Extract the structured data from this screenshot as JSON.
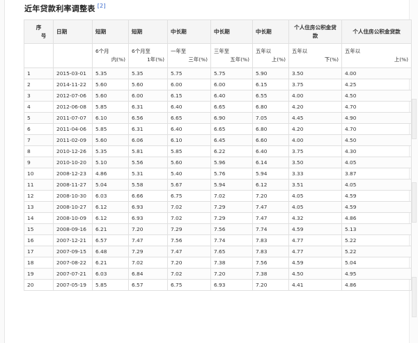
{
  "caption": {
    "title": "近年贷款利率调整表",
    "ref": "[2]"
  },
  "header": {
    "seq_line1": "序",
    "seq_line2": "号",
    "date": "日期",
    "short1": "短期",
    "short2": "短期",
    "mid1": "中长期",
    "mid2": "中长期",
    "mid3": "中长期",
    "fund1": "个人住房公积金贷款",
    "fund2": "个人住房公积金贷款"
  },
  "subheader": [
    {
      "l1": "",
      "l2": ""
    },
    {
      "l1": "",
      "l2": ""
    },
    {
      "l1": "6个月",
      "l2": "内(%)"
    },
    {
      "l1": "6个月至",
      "l2": "1年(%)"
    },
    {
      "l1": "一年至",
      "l2": "三年(%)"
    },
    {
      "l1": "三年至",
      "l2": "五年(%)"
    },
    {
      "l1": "五年以",
      "l2": "上(%)"
    },
    {
      "l1": "五年以",
      "l2": "下(%)"
    },
    {
      "l1": "五年以",
      "l2": "上(%)"
    }
  ],
  "rows": [
    [
      "1",
      "2015-03-01",
      "5.35",
      "5.35",
      "5.75",
      "5.75",
      "5.90",
      "3.50",
      "4.00"
    ],
    [
      "2",
      "2014-11-22",
      "5.60",
      "5.60",
      "6.00",
      "6.00",
      "6.15",
      "3.75",
      "4.25"
    ],
    [
      "3",
      "2012-07-06",
      "5.60",
      "6.00",
      "6.15",
      "6.40",
      "6.55",
      "4.00",
      "4.50"
    ],
    [
      "4",
      "2012-06-08",
      "5.85",
      "6.31",
      "6.40",
      "6.65",
      "6.80",
      "4.20",
      "4.70"
    ],
    [
      "5",
      "2011-07-07",
      "6.10",
      "6.56",
      "6.65",
      "6.90",
      "7.05",
      "4.45",
      "4.90"
    ],
    [
      "6",
      "2011-04-06",
      "5.85",
      "6.31",
      "6.40",
      "6.65",
      "6.80",
      "4.20",
      "4.70"
    ],
    [
      "7",
      "2011-02-09",
      "5.60",
      "6.06",
      "6.10",
      "6.45",
      "6.60",
      "4.00",
      "4.50"
    ],
    [
      "8",
      "2010-12-26",
      "5.35",
      "5.81",
      "5.85",
      "6.22",
      "6.40",
      "3.75",
      "4.30"
    ],
    [
      "9",
      "2010-10-20",
      "5.10",
      "5.56",
      "5.60",
      "5.96",
      "6.14",
      "3.50",
      "4.05"
    ],
    [
      "10",
      "2008-12-23",
      "4.86",
      "5.31",
      "5.40",
      "5.76",
      "5.94",
      "3.33",
      "3.87"
    ],
    [
      "11",
      "2008-11-27",
      "5.04",
      "5.58",
      "5.67",
      "5.94",
      "6.12",
      "3.51",
      "4.05"
    ],
    [
      "12",
      "2008-10-30",
      "6.03",
      "6.66",
      "6.75",
      "7.02",
      "7.20",
      "4.05",
      "4.59"
    ],
    [
      "13",
      "2008-10-27",
      "6.12",
      "6.93",
      "7.02",
      "7.29",
      "7.47",
      "4.05",
      "4.59"
    ],
    [
      "14",
      "2008-10-09",
      "6.12",
      "6.93",
      "7.02",
      "7.29",
      "7.47",
      "4.32",
      "4.86"
    ],
    [
      "15",
      "2008-09-16",
      "6.21",
      "7.20",
      "7.29",
      "7.56",
      "7.74",
      "4.59",
      "5.13"
    ],
    [
      "16",
      "2007-12-21",
      "6.57",
      "7.47",
      "7.56",
      "7.74",
      "7.83",
      "4.77",
      "5.22"
    ],
    [
      "17",
      "2007-09-15",
      "6.48",
      "7.29",
      "7.47",
      "7.65",
      "7.83",
      "4.77",
      "5.22"
    ],
    [
      "18",
      "2007-08-22",
      "6.21",
      "7.02",
      "7.20",
      "7.38",
      "7.56",
      "4.59",
      "5.04"
    ],
    [
      "19",
      "2007-07-21",
      "6.03",
      "6.84",
      "7.02",
      "7.20",
      "7.38",
      "4.50",
      "4.95"
    ],
    [
      "20",
      "2007-05-19",
      "5.85",
      "6.57",
      "6.75",
      "6.93",
      "7.20",
      "4.41",
      "4.86"
    ]
  ]
}
